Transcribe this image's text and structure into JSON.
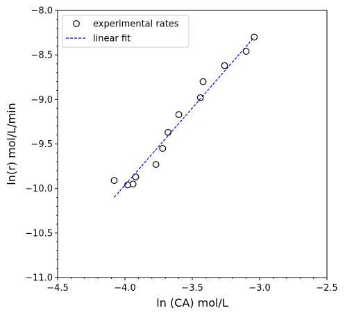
{
  "chart_data": {
    "type": "scatter",
    "xlabel": "ln (CA) mol/L",
    "ylabel": "ln(r) mol/L/min",
    "xlim": [
      -4.5,
      -2.5
    ],
    "ylim": [
      -11.0,
      -8.0
    ],
    "x_ticks": [
      -4.5,
      -4.0,
      -3.5,
      -3.0,
      -2.5
    ],
    "y_ticks": [
      -11.0,
      -10.5,
      -10.0,
      -9.5,
      -9.0,
      -8.5,
      -8.0
    ],
    "x_tick_labels": [
      "−4.5",
      "−4.0",
      "−3.5",
      "−3.0",
      "−2.5"
    ],
    "y_tick_labels": [
      "−11.0",
      "−10.5",
      "−10.0",
      "−9.5",
      "−9.0",
      "−8.5",
      "−8.0"
    ],
    "grid": false,
    "legend_position": "top-left",
    "series": [
      {
        "name": "experimental rates",
        "kind": "markers",
        "marker": "open-circle",
        "color": "#000000",
        "x": [
          -4.08,
          -3.98,
          -3.94,
          -3.92,
          -3.77,
          -3.72,
          -3.68,
          -3.6,
          -3.44,
          -3.42,
          -3.26,
          -3.1,
          -3.04
        ],
        "y": [
          -9.91,
          -9.96,
          -9.95,
          -9.87,
          -9.73,
          -9.55,
          -9.37,
          -9.17,
          -8.98,
          -8.8,
          -8.62,
          -8.46,
          -8.3
        ]
      },
      {
        "name": "linear fit",
        "kind": "line",
        "style": "dashed",
        "color": "#0000ff",
        "x": [
          -4.08,
          -3.04
        ],
        "y": [
          -10.1,
          -8.3
        ]
      }
    ]
  }
}
